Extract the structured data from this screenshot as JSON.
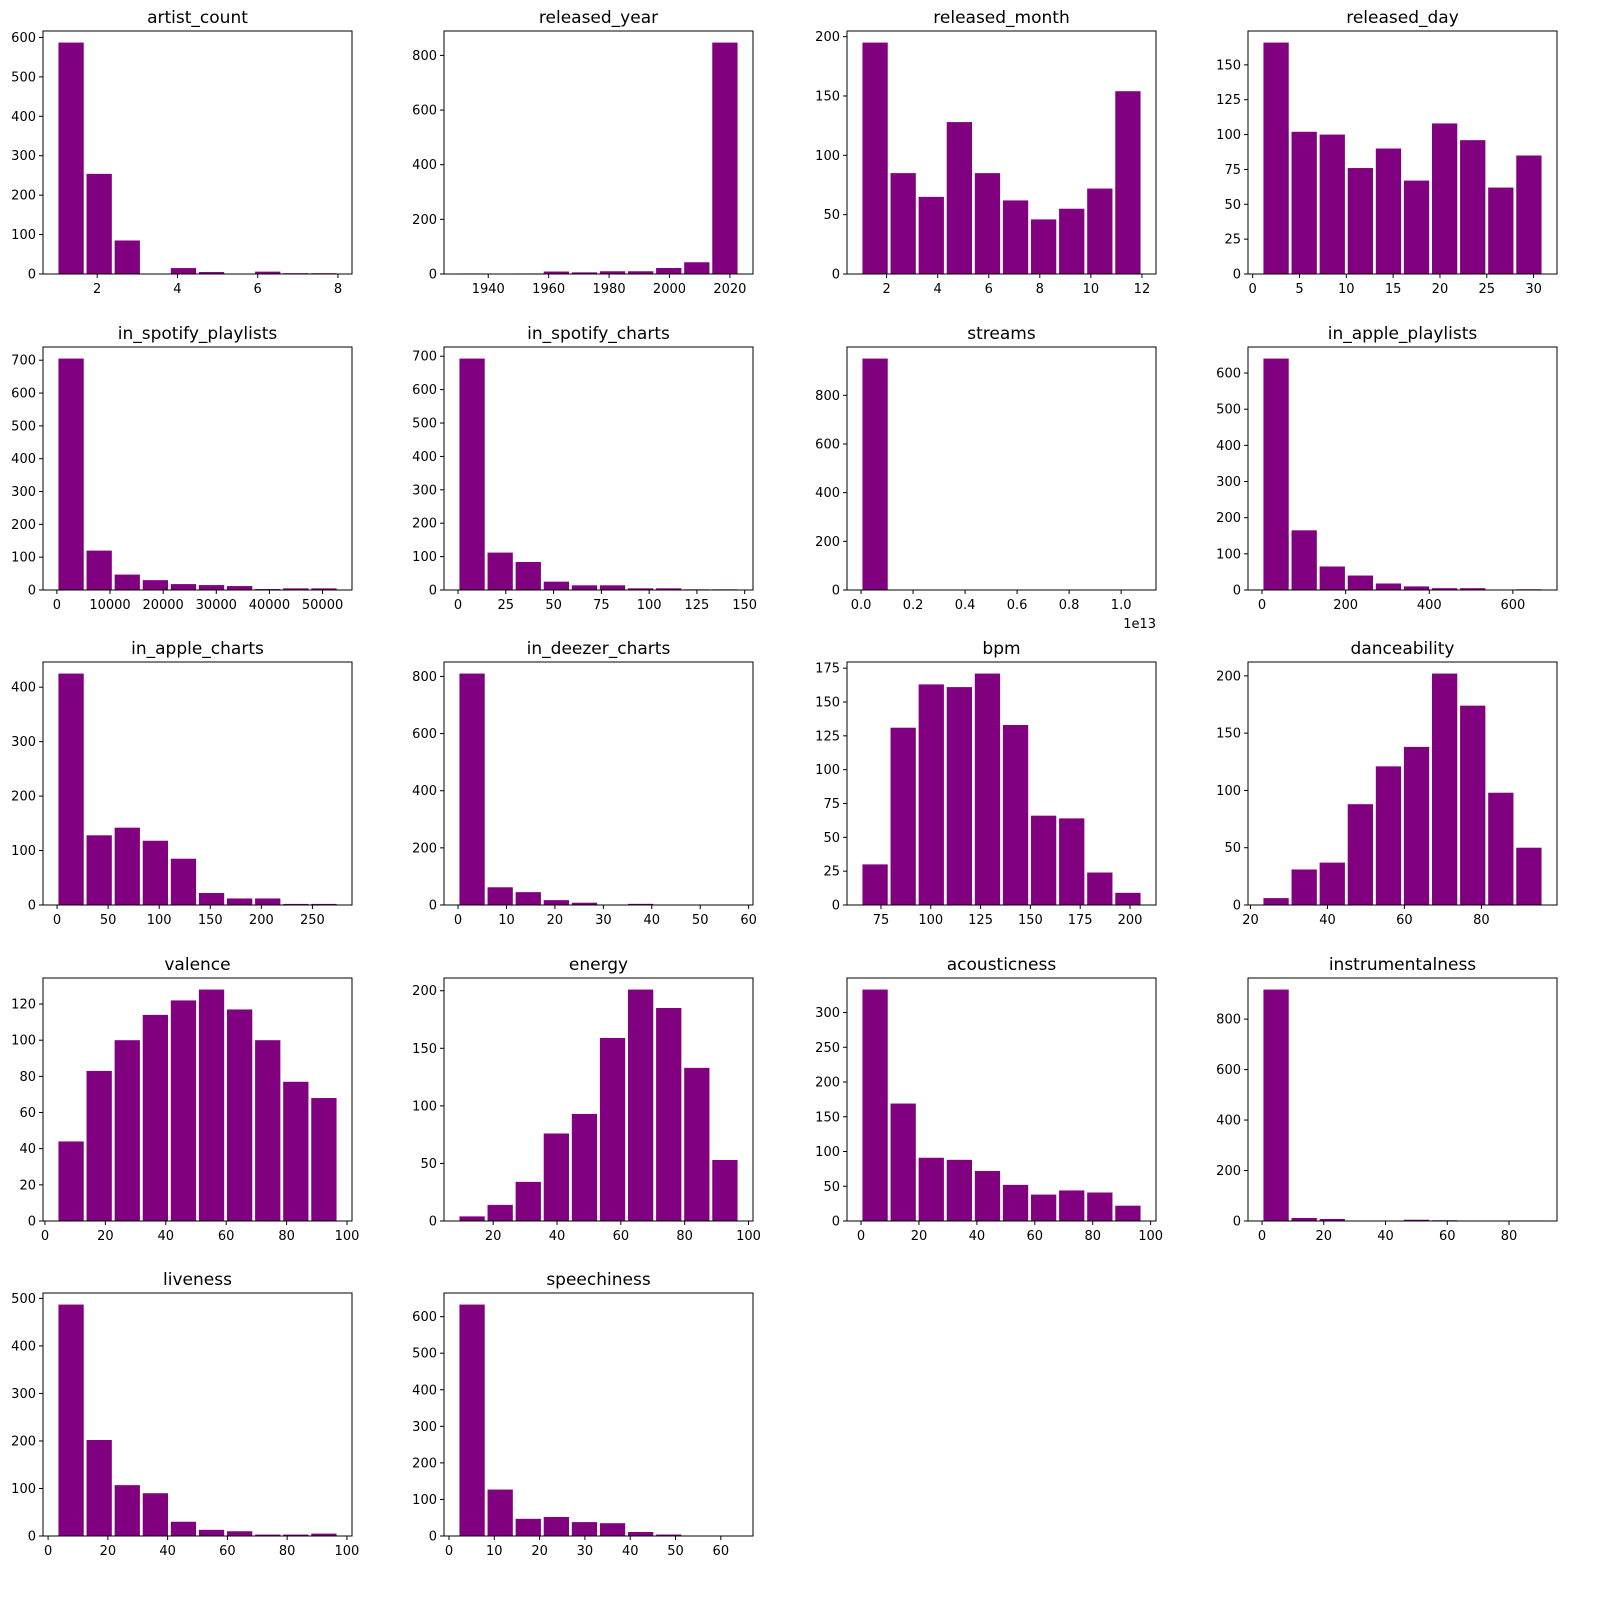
{
  "colors": {
    "bar": "#800080",
    "axis": "#000000"
  },
  "chart_data": [
    {
      "type": "bar",
      "title": "artist_count",
      "range": [
        1,
        8
      ],
      "counts": [
        587,
        254,
        85,
        0,
        15,
        5,
        0,
        6,
        2,
        2
      ],
      "xticks": [
        2,
        4,
        6,
        8
      ],
      "yticks": [
        0,
        100,
        200,
        300,
        400,
        500,
        600
      ]
    },
    {
      "type": "bar",
      "title": "released_year",
      "range": [
        1930,
        2023
      ],
      "counts": [
        2,
        1,
        2,
        9,
        6,
        10,
        10,
        22,
        43,
        847
      ],
      "xticks": [
        1940,
        1960,
        1980,
        2000,
        2020
      ],
      "yticks": [
        0,
        200,
        400,
        600,
        800
      ]
    },
    {
      "type": "bar",
      "title": "released_month",
      "range": [
        1,
        12
      ],
      "counts": [
        195,
        85,
        65,
        128,
        85,
        62,
        46,
        55,
        72,
        154
      ],
      "xticks": [
        2,
        4,
        6,
        8,
        10,
        12
      ],
      "yticks": [
        0,
        50,
        100,
        150,
        200
      ]
    },
    {
      "type": "bar",
      "title": "released_day",
      "range": [
        1,
        31
      ],
      "counts": [
        166,
        102,
        100,
        76,
        90,
        67,
        108,
        96,
        62,
        85
      ],
      "xticks": [
        0,
        5,
        10,
        15,
        20,
        25,
        30
      ],
      "yticks": [
        0,
        25,
        50,
        75,
        100,
        125,
        150
      ]
    },
    {
      "type": "bar",
      "title": "in_spotify_playlists",
      "range": [
        31,
        52898
      ],
      "counts": [
        705,
        120,
        47,
        30,
        18,
        15,
        12,
        3,
        5,
        5
      ],
      "xticks": [
        0,
        10000,
        20000,
        30000,
        40000,
        50000
      ],
      "yticks": [
        0,
        100,
        200,
        300,
        400,
        500,
        600,
        700
      ]
    },
    {
      "type": "bar",
      "title": "in_spotify_charts",
      "range": [
        0,
        147
      ],
      "counts": [
        693,
        112,
        84,
        25,
        14,
        14,
        5,
        5,
        2,
        2
      ],
      "xticks": [
        0,
        25,
        50,
        75,
        100,
        125,
        150
      ],
      "yticks": [
        0,
        100,
        200,
        300,
        400,
        500,
        600,
        700
      ]
    },
    {
      "type": "bar",
      "title": "streams",
      "range": [
        0,
        1.08
      ],
      "counts": [
        951,
        0,
        0,
        0,
        0,
        0,
        0,
        0,
        0,
        1
      ],
      "xticks": [
        "0.0",
        "0.2",
        "0.4",
        "0.6",
        "0.8",
        "1.0"
      ],
      "yticks": [
        0,
        200,
        400,
        600,
        800
      ],
      "offset_label": "1e13"
    },
    {
      "type": "bar",
      "title": "in_apple_playlists",
      "range": [
        0,
        672
      ],
      "counts": [
        640,
        165,
        65,
        40,
        18,
        10,
        5,
        5,
        0,
        2
      ],
      "xticks": [
        0,
        200,
        400,
        600
      ],
      "yticks": [
        0,
        100,
        200,
        300,
        400,
        500,
        600
      ]
    },
    {
      "type": "bar",
      "title": "in_apple_charts",
      "range": [
        0,
        275
      ],
      "counts": [
        425,
        128,
        142,
        118,
        85,
        22,
        12,
        12,
        2,
        2
      ],
      "xticks": [
        0,
        50,
        100,
        150,
        200,
        250
      ],
      "yticks": [
        0,
        100,
        200,
        300,
        400
      ]
    },
    {
      "type": "bar",
      "title": "in_deezer_charts",
      "range": [
        0,
        58
      ],
      "counts": [
        810,
        62,
        45,
        17,
        8,
        1,
        4,
        1,
        0,
        1
      ],
      "xticks": [
        0,
        10,
        20,
        30,
        40,
        50,
        60
      ],
      "yticks": [
        0,
        200,
        400,
        600,
        800
      ]
    },
    {
      "type": "bar",
      "title": "bpm",
      "range": [
        65,
        206
      ],
      "counts": [
        30,
        131,
        163,
        161,
        171,
        133,
        66,
        64,
        24,
        9
      ],
      "xticks": [
        75,
        100,
        125,
        150,
        175,
        200
      ],
      "yticks": [
        0,
        25,
        50,
        75,
        100,
        125,
        150,
        175
      ]
    },
    {
      "type": "bar",
      "title": "danceability",
      "range": [
        23,
        96
      ],
      "counts": [
        6,
        31,
        37,
        88,
        121,
        138,
        202,
        174,
        98,
        50
      ],
      "xticks": [
        20,
        40,
        60,
        80
      ],
      "yticks": [
        0,
        50,
        100,
        150,
        200
      ]
    },
    {
      "type": "bar",
      "title": "valence",
      "range": [
        4,
        97
      ],
      "counts": [
        44,
        83,
        100,
        114,
        122,
        128,
        117,
        100,
        77,
        68
      ],
      "xticks": [
        0,
        20,
        40,
        60,
        80,
        100
      ],
      "yticks": [
        0,
        20,
        40,
        60,
        80,
        100,
        120
      ]
    },
    {
      "type": "bar",
      "title": "energy",
      "range": [
        9,
        97
      ],
      "counts": [
        4,
        14,
        34,
        76,
        93,
        159,
        201,
        185,
        133,
        53
      ],
      "xticks": [
        20,
        40,
        60,
        80,
        100
      ],
      "yticks": [
        0,
        50,
        100,
        150,
        200
      ]
    },
    {
      "type": "bar",
      "title": "acousticness",
      "range": [
        0,
        97
      ],
      "counts": [
        333,
        169,
        91,
        88,
        72,
        52,
        38,
        44,
        41,
        22
      ],
      "xticks": [
        0,
        20,
        40,
        60,
        80,
        100
      ],
      "yticks": [
        0,
        50,
        100,
        150,
        200,
        250,
        300
      ]
    },
    {
      "type": "bar",
      "title": "instrumentalness",
      "range": [
        0,
        91
      ],
      "counts": [
        917,
        12,
        8,
        0,
        1,
        5,
        3,
        1,
        0,
        2
      ],
      "xticks": [
        0,
        20,
        40,
        60,
        80
      ],
      "yticks": [
        0,
        200,
        400,
        600,
        800
      ]
    },
    {
      "type": "bar",
      "title": "liveness",
      "range": [
        3,
        97
      ],
      "counts": [
        487,
        202,
        107,
        90,
        30,
        13,
        10,
        3,
        3,
        5
      ],
      "xticks": [
        0,
        20,
        40,
        60,
        80,
        100
      ],
      "yticks": [
        0,
        100,
        200,
        300,
        400,
        500
      ]
    },
    {
      "type": "bar",
      "title": "speechiness",
      "range": [
        2,
        64
      ],
      "counts": [
        633,
        127,
        47,
        52,
        38,
        35,
        11,
        4,
        1,
        1
      ],
      "xticks": [
        0,
        10,
        20,
        30,
        40,
        50,
        60
      ],
      "yticks": [
        0,
        100,
        200,
        300,
        400,
        500,
        600
      ]
    }
  ]
}
